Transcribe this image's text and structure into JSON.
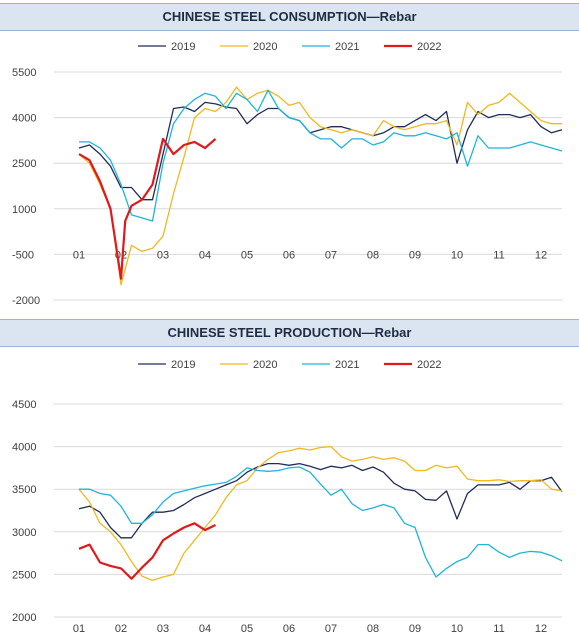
{
  "colors": {
    "2019": "#1f2d5a",
    "2020": "#f2b81e",
    "2021": "#1fb4dc",
    "2022": "#e0191b"
  },
  "chart_data": [
    {
      "type": "line",
      "title": "CHINESE STEEL CONSUMPTION—Rebar",
      "x_ticks": [
        "01",
        "02",
        "03",
        "04",
        "05",
        "06",
        "07",
        "08",
        "09",
        "10",
        "11",
        "12"
      ],
      "y_ticks": [
        5500,
        4000,
        2500,
        1000,
        -500,
        -2000
      ],
      "ylim": [
        -2000,
        5500
      ],
      "xlim": [
        0.5,
        12.5
      ],
      "legend_position": "top",
      "grid": "horizontal",
      "series": [
        {
          "name": "2019",
          "color": "#1f2d5a",
          "width": 1.3,
          "x": [
            1,
            1.25,
            1.5,
            1.75,
            2,
            2.25,
            2.5,
            2.75,
            3,
            3.25,
            3.5,
            3.75,
            4,
            4.25,
            4.5,
            4.75,
            5,
            5.25,
            5.5,
            5.75,
            6,
            6.25,
            6.5,
            6.75,
            7,
            7.25,
            7.5,
            7.75,
            8,
            8.25,
            8.5,
            8.75,
            9,
            9.25,
            9.5,
            9.75,
            10,
            10.25,
            10.5,
            10.75,
            11,
            11.25,
            11.5,
            11.75,
            12,
            12.25,
            12.5
          ],
          "y": [
            3000,
            3100,
            2800,
            2400,
            1700,
            1700,
            1300,
            1300,
            2800,
            4300,
            4350,
            4200,
            4500,
            4450,
            4350,
            4300,
            3800,
            4100,
            4300,
            4300,
            4000,
            3900,
            3500,
            3600,
            3700,
            3700,
            3600,
            3500,
            3400,
            3500,
            3700,
            3700,
            3900,
            4100,
            3900,
            4200,
            2500,
            3600,
            4200,
            4000,
            4100,
            4100,
            4000,
            4100,
            3700,
            3500,
            3600
          ]
        },
        {
          "name": "2020",
          "color": "#f2b81e",
          "width": 1.3,
          "x": [
            1,
            1.25,
            1.5,
            1.75,
            2,
            2.25,
            2.5,
            2.75,
            3,
            3.25,
            3.5,
            3.75,
            4,
            4.25,
            4.5,
            4.75,
            5,
            5.25,
            5.5,
            5.75,
            6,
            6.25,
            6.5,
            6.75,
            7,
            7.25,
            7.5,
            7.75,
            8,
            8.25,
            8.5,
            8.75,
            9,
            9.25,
            9.5,
            9.75,
            10,
            10.25,
            10.5,
            10.75,
            11,
            11.25,
            11.5,
            11.75,
            12,
            12.25,
            12.5
          ],
          "y": [
            2800,
            2500,
            1800,
            1000,
            -1500,
            -200,
            -400,
            -300,
            100,
            1500,
            2700,
            4000,
            4300,
            4200,
            4500,
            5000,
            4600,
            4800,
            4900,
            4700,
            4400,
            4500,
            4000,
            3700,
            3600,
            3500,
            3600,
            3500,
            3400,
            3900,
            3700,
            3600,
            3700,
            3800,
            3800,
            3900,
            3100,
            4500,
            4100,
            4400,
            4500,
            4800,
            4500,
            4200,
            3900,
            3800,
            3800
          ]
        },
        {
          "name": "2021",
          "color": "#1fb4dc",
          "width": 1.3,
          "x": [
            1,
            1.25,
            1.5,
            1.75,
            2,
            2.25,
            2.5,
            2.75,
            3,
            3.25,
            3.5,
            3.75,
            4,
            4.25,
            4.5,
            4.75,
            5,
            5.25,
            5.5,
            5.75,
            6,
            6.25,
            6.5,
            6.75,
            7,
            7.25,
            7.5,
            7.75,
            8,
            8.25,
            8.5,
            8.75,
            9,
            9.25,
            9.5,
            9.75,
            10,
            10.25,
            10.5,
            10.75,
            11,
            11.25,
            11.5,
            11.75,
            12,
            12.25,
            12.5
          ],
          "y": [
            3200,
            3200,
            3000,
            2600,
            1800,
            800,
            700,
            600,
            2500,
            3800,
            4300,
            4600,
            4800,
            4700,
            4300,
            4800,
            4600,
            4200,
            4900,
            4300,
            4000,
            3900,
            3500,
            3300,
            3300,
            3000,
            3300,
            3300,
            3100,
            3200,
            3500,
            3400,
            3400,
            3500,
            3400,
            3300,
            3500,
            2400,
            3400,
            3000,
            3000,
            3000,
            3100,
            3200,
            3100,
            3000,
            2900
          ]
        },
        {
          "name": "2022",
          "color": "#e0191b",
          "width": 2.2,
          "x": [
            1,
            1.25,
            1.5,
            1.75,
            2,
            2.1,
            2.25,
            2.5,
            2.75,
            3,
            3.25,
            3.5,
            3.75,
            4,
            4.25
          ],
          "y": [
            2800,
            2600,
            1900,
            1000,
            -1300,
            600,
            1100,
            1300,
            1800,
            3300,
            2800,
            3100,
            3200,
            3000,
            3300
          ]
        }
      ]
    },
    {
      "type": "line",
      "title": "CHINESE STEEL PRODUCTION—Rebar",
      "x_ticks": [
        "01",
        "02",
        "03",
        "04",
        "05",
        "06",
        "07",
        "08",
        "09",
        "10",
        "11",
        "12"
      ],
      "y_ticks": [
        4500,
        4000,
        3500,
        3000,
        2500,
        2000
      ],
      "ylim": [
        2000,
        4500
      ],
      "xlim": [
        0.5,
        12.5
      ],
      "legend_position": "top",
      "grid": "horizontal",
      "series": [
        {
          "name": "2019",
          "color": "#1f2d5a",
          "width": 1.3,
          "x": [
            1,
            1.25,
            1.5,
            1.75,
            2,
            2.25,
            2.5,
            2.75,
            3,
            3.25,
            3.5,
            3.75,
            4,
            4.25,
            4.5,
            4.75,
            5,
            5.25,
            5.5,
            5.75,
            6,
            6.25,
            6.5,
            6.75,
            7,
            7.25,
            7.5,
            7.75,
            8,
            8.25,
            8.5,
            8.75,
            9,
            9.25,
            9.5,
            9.75,
            10,
            10.25,
            10.5,
            10.75,
            11,
            11.25,
            11.5,
            11.75,
            12,
            12.25,
            12.5
          ],
          "y": [
            3270,
            3300,
            3230,
            3050,
            2930,
            2930,
            3100,
            3230,
            3230,
            3250,
            3320,
            3400,
            3450,
            3500,
            3550,
            3600,
            3700,
            3760,
            3800,
            3800,
            3780,
            3800,
            3770,
            3730,
            3770,
            3750,
            3780,
            3720,
            3760,
            3700,
            3570,
            3500,
            3480,
            3380,
            3370,
            3480,
            3150,
            3450,
            3550,
            3550,
            3550,
            3580,
            3500,
            3600,
            3600,
            3640,
            3470
          ]
        },
        {
          "name": "2020",
          "color": "#f2b81e",
          "width": 1.3,
          "x": [
            1,
            1.25,
            1.5,
            1.75,
            2,
            2.25,
            2.5,
            2.75,
            3,
            3.25,
            3.5,
            3.75,
            4,
            4.25,
            4.5,
            4.75,
            5,
            5.25,
            5.5,
            5.75,
            6,
            6.25,
            6.5,
            6.75,
            7,
            7.25,
            7.5,
            7.75,
            8,
            8.25,
            8.5,
            8.75,
            9,
            9.25,
            9.5,
            9.75,
            10,
            10.25,
            10.5,
            10.75,
            11,
            11.25,
            11.5,
            11.75,
            12,
            12.25,
            12.5
          ],
          "y": [
            3500,
            3350,
            3100,
            3000,
            2850,
            2650,
            2480,
            2430,
            2470,
            2500,
            2750,
            2900,
            3050,
            3200,
            3400,
            3550,
            3600,
            3750,
            3850,
            3930,
            3950,
            3980,
            3960,
            3990,
            4000,
            3880,
            3830,
            3850,
            3880,
            3850,
            3870,
            3830,
            3720,
            3720,
            3780,
            3750,
            3770,
            3620,
            3600,
            3600,
            3610,
            3590,
            3600,
            3600,
            3610,
            3500,
            3480
          ]
        },
        {
          "name": "2021",
          "color": "#1fb4dc",
          "width": 1.3,
          "x": [
            1,
            1.25,
            1.5,
            1.75,
            2,
            2.25,
            2.5,
            2.75,
            3,
            3.25,
            3.5,
            3.75,
            4,
            4.25,
            4.5,
            4.75,
            5,
            5.25,
            5.5,
            5.75,
            6,
            6.25,
            6.5,
            6.75,
            7,
            7.25,
            7.5,
            7.75,
            8,
            8.25,
            8.5,
            8.75,
            9,
            9.25,
            9.5,
            9.75,
            10,
            10.25,
            10.5,
            10.75,
            11,
            11.25,
            11.5,
            11.75,
            12,
            12.25,
            12.5
          ],
          "y": [
            3500,
            3500,
            3450,
            3430,
            3300,
            3100,
            3100,
            3200,
            3350,
            3450,
            3480,
            3510,
            3540,
            3560,
            3580,
            3650,
            3750,
            3720,
            3710,
            3720,
            3750,
            3760,
            3700,
            3560,
            3430,
            3500,
            3330,
            3250,
            3280,
            3320,
            3280,
            3100,
            3050,
            2700,
            2470,
            2570,
            2650,
            2700,
            2850,
            2850,
            2760,
            2700,
            2750,
            2770,
            2760,
            2720,
            2660
          ]
        },
        {
          "name": "2022",
          "color": "#e0191b",
          "width": 2.2,
          "x": [
            1,
            1.25,
            1.5,
            1.75,
            2,
            2.25,
            2.5,
            2.75,
            3,
            3.25,
            3.5,
            3.75,
            4,
            4.25
          ],
          "y": [
            2800,
            2850,
            2640,
            2600,
            2570,
            2450,
            2580,
            2700,
            2900,
            2980,
            3050,
            3100,
            3020,
            3080
          ]
        }
      ]
    }
  ]
}
